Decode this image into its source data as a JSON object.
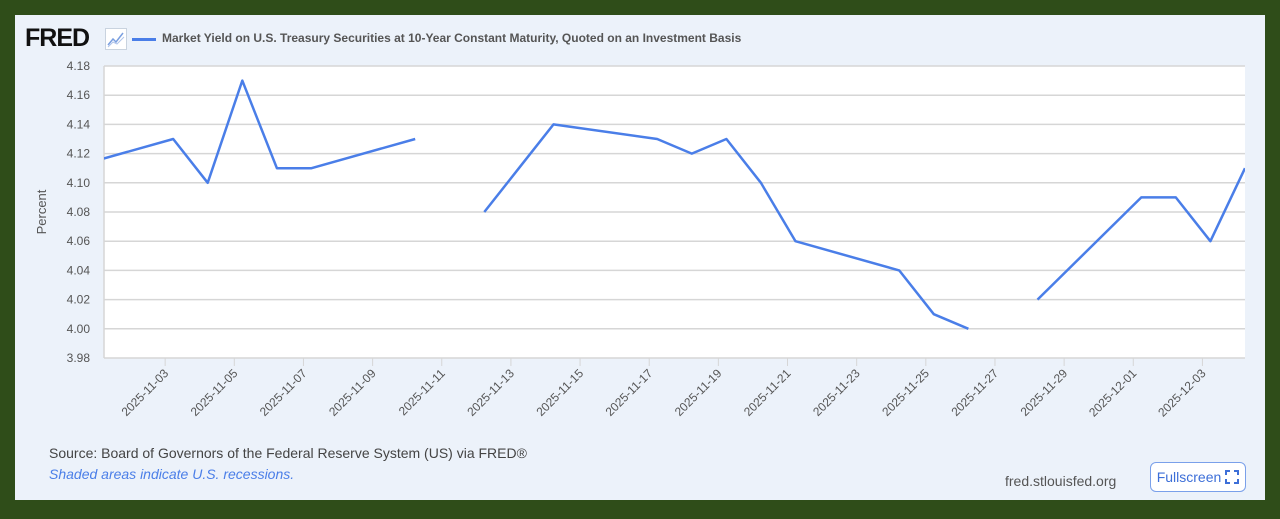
{
  "header": {
    "logo": "FRED",
    "series_title": "Market Yield on U.S. Treasury Securities at 10-Year Constant Maturity, Quoted on an Investment Basis"
  },
  "footer": {
    "source": "Source: Board of Governors of the Federal Reserve System (US) via FRED®",
    "recessions_note": "Shaded areas indicate U.S. recessions.",
    "site": "fred.stlouisfed.org",
    "fullscreen_label": "Fullscreen"
  },
  "colors": {
    "line": "#4a7ee8",
    "frame": "#2f4d19",
    "panel": "#ecf2fa"
  },
  "chart_data": {
    "type": "line",
    "ylabel": "Percent",
    "xlabel": "",
    "xlim": [
      "2025-11-01",
      "2025-12-04"
    ],
    "ylim": [
      3.98,
      4.18
    ],
    "yticks": [
      "3.98",
      "4.00",
      "4.02",
      "4.04",
      "4.06",
      "4.08",
      "4.10",
      "4.12",
      "4.14",
      "4.16",
      "4.18"
    ],
    "xticks": [
      "2025-11-03",
      "2025-11-05",
      "2025-11-07",
      "2025-11-09",
      "2025-11-11",
      "2025-11-13",
      "2025-11-15",
      "2025-11-17",
      "2025-11-19",
      "2025-11-21",
      "2025-11-23",
      "2025-11-25",
      "2025-11-27",
      "2025-11-29",
      "2025-12-01",
      "2025-12-03"
    ],
    "grid": true,
    "legend": "top-left",
    "series": [
      {
        "points": [
          [
            "2025-10-31",
            4.11
          ],
          [
            "2025-11-03",
            4.13
          ],
          [
            "2025-11-04",
            4.1
          ],
          [
            "2025-11-05",
            4.17
          ],
          [
            "2025-11-06",
            4.11
          ],
          [
            "2025-11-07",
            4.11
          ],
          [
            "2025-11-10",
            4.13
          ],
          [
            "2025-11-11",
            null
          ],
          [
            "2025-11-12",
            4.08
          ],
          [
            "2025-11-13",
            4.11
          ],
          [
            "2025-11-14",
            4.14
          ],
          [
            "2025-11-17",
            4.13
          ],
          [
            "2025-11-18",
            4.12
          ],
          [
            "2025-11-19",
            4.13
          ],
          [
            "2025-11-20",
            4.1
          ],
          [
            "2025-11-21",
            4.06
          ],
          [
            "2025-11-24",
            4.04
          ],
          [
            "2025-11-25",
            4.01
          ],
          [
            "2025-11-26",
            4.0
          ],
          [
            "2025-11-27",
            null
          ],
          [
            "2025-11-28",
            4.02
          ],
          [
            "2025-12-01",
            4.09
          ],
          [
            "2025-12-02",
            4.09
          ],
          [
            "2025-12-03",
            4.06
          ],
          [
            "2025-12-04",
            4.11
          ]
        ]
      }
    ]
  }
}
